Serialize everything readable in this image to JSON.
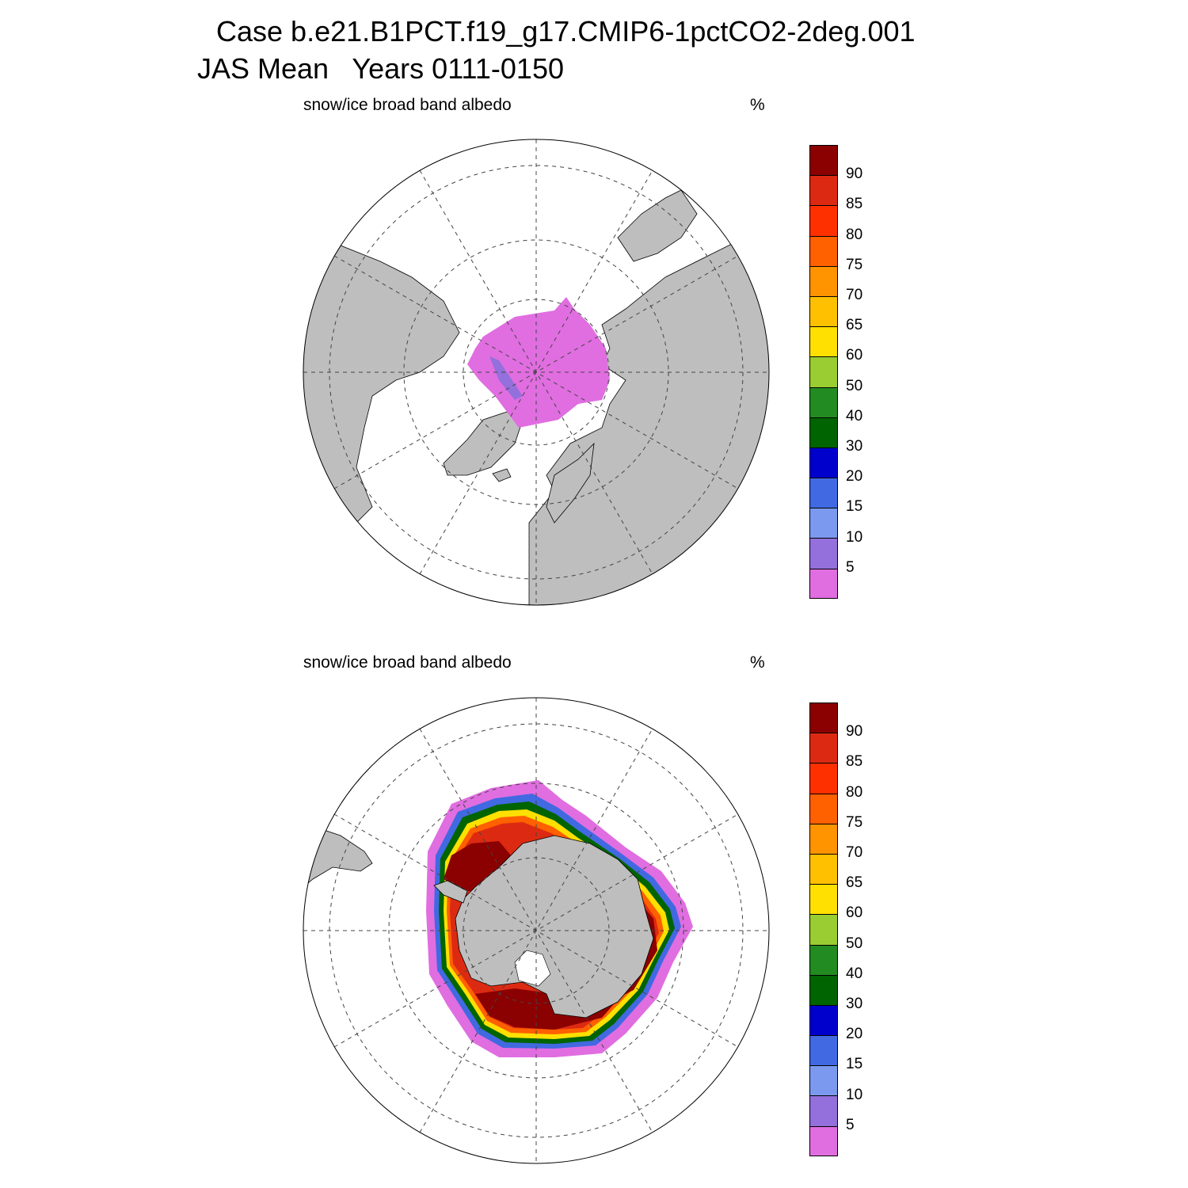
{
  "header": {
    "title_line1": "Case b.e21.B1PCT.f19_g17.CMIP6-1pctCO2-2deg.001",
    "title_line2": "JAS Mean   Years 0111-0150"
  },
  "panels": [
    {
      "id": "north",
      "hemisphere": "Northern Hemisphere",
      "variable_label": "snow/ice broad band albedo",
      "units_label": "%"
    },
    {
      "id": "south",
      "hemisphere": "Southern Hemisphere",
      "variable_label": "snow/ice broad band albedo",
      "units_label": "%"
    }
  ],
  "colorbar": {
    "tick_labels": [
      "5",
      "10",
      "15",
      "20",
      "30",
      "40",
      "50",
      "60",
      "65",
      "70",
      "75",
      "80",
      "85",
      "90"
    ],
    "colors": [
      "#e06ee0",
      "#9370db",
      "#7b9aef",
      "#4169e1",
      "#0000cd",
      "#006400",
      "#228b22",
      "#9acd32",
      "#ffe000",
      "#ffc000",
      "#ff9400",
      "#ff6000",
      "#ff3000",
      "#dc2a12",
      "#8b0000"
    ]
  },
  "map_style": {
    "land": "#bebebe",
    "ocean": "#ffffff",
    "grid": "dashed"
  },
  "chart_data": [
    {
      "type": "heatmap",
      "title": "snow/ice broad band albedo",
      "units": "%",
      "region": "Northern Hemisphere polar",
      "levels": [
        5,
        10,
        15,
        20,
        30,
        40,
        50,
        60,
        65,
        70,
        75,
        80,
        85,
        90
      ],
      "dominant_class": "<5"
    },
    {
      "type": "heatmap",
      "title": "snow/ice broad band albedo",
      "units": "%",
      "region": "Southern Hemisphere polar",
      "levels": [
        5,
        10,
        15,
        20,
        30,
        40,
        50,
        60,
        65,
        70,
        75,
        80,
        85,
        90
      ],
      "dominant_class": ">90"
    }
  ]
}
